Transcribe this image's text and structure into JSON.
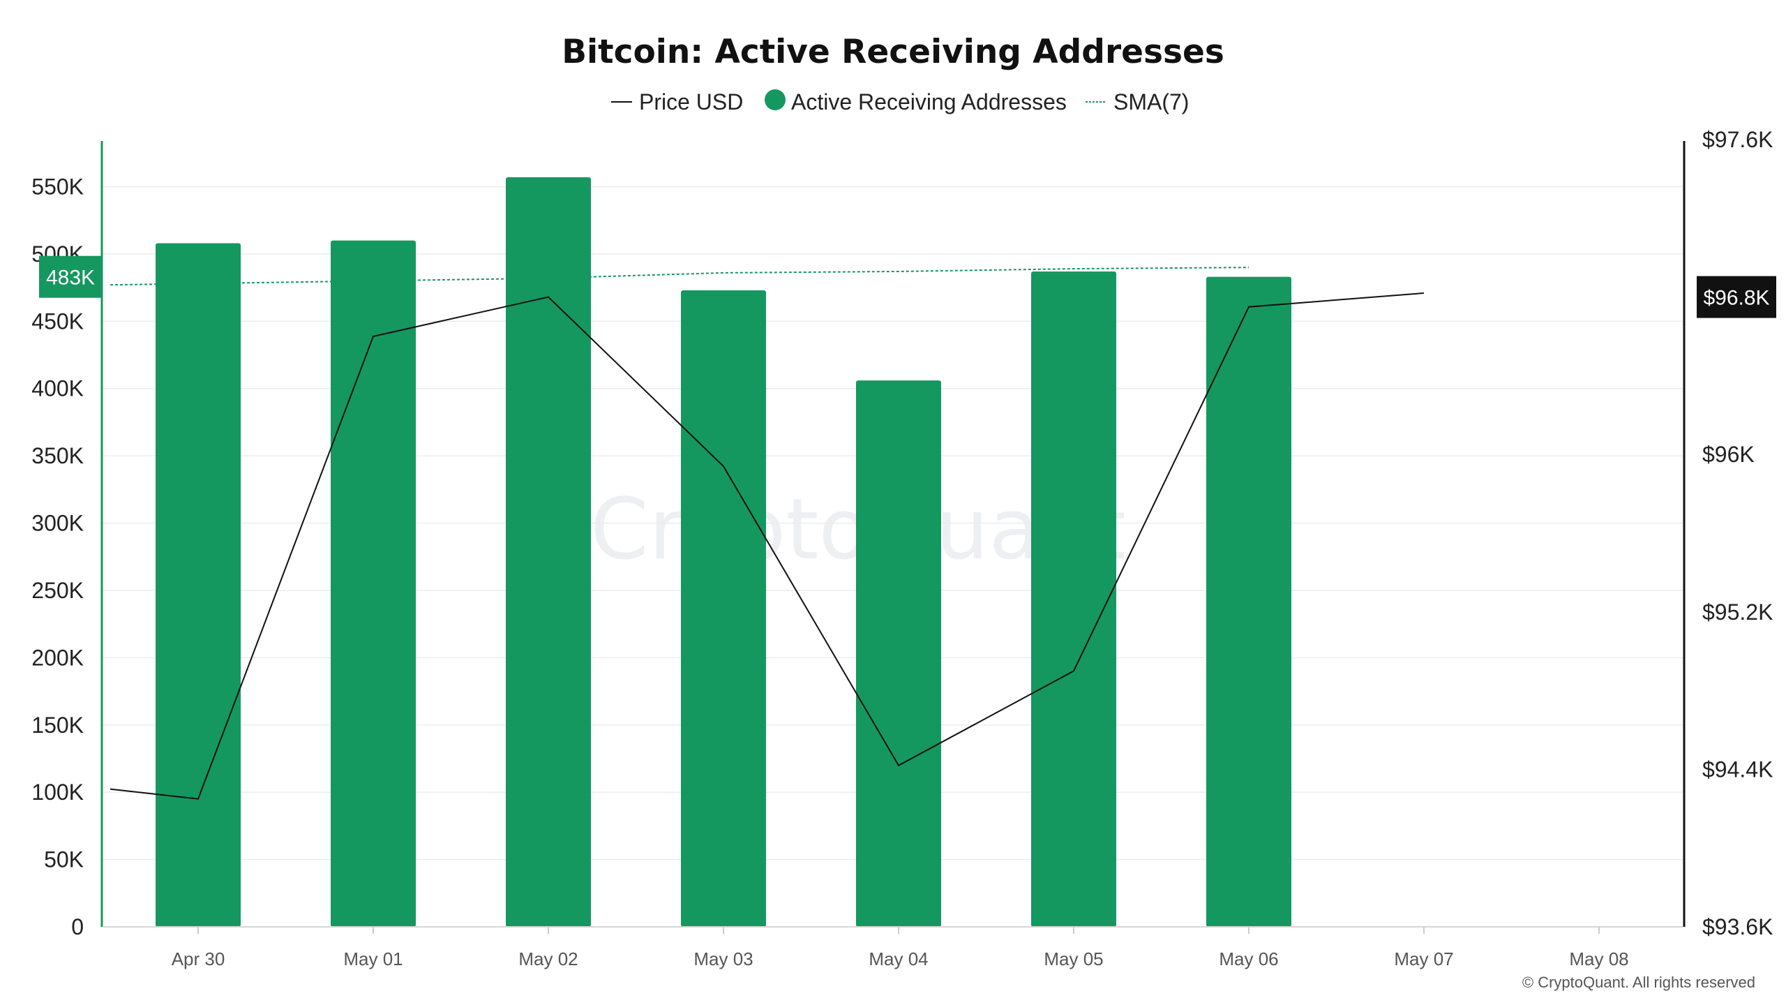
{
  "chart_data": {
    "type": "bar",
    "title": "Bitcoin: Active Receiving Addresses",
    "categories": [
      "Apr 30",
      "May 01",
      "May 02",
      "May 03",
      "May 04",
      "May 05",
      "May 06",
      "May 07",
      "May 08"
    ],
    "series": [
      {
        "name": "Active Receiving Addresses",
        "type": "bar",
        "axis": "left",
        "color": "#14985f",
        "values": [
          508000,
          510000,
          557000,
          473000,
          406000,
          487000,
          483000,
          null,
          null
        ]
      },
      {
        "name": "Price USD",
        "type": "line",
        "axis": "right",
        "color": "#111111",
        "values": [
          94250,
          96600,
          96800,
          95940,
          94420,
          94900,
          96750,
          96820,
          null
        ],
        "start_value": 94300
      },
      {
        "name": "SMA(7)",
        "type": "line",
        "style": "dashed",
        "axis": "left",
        "color": "#14985f",
        "values": [
          478000,
          480000,
          482000,
          486000,
          487000,
          489000,
          490000,
          null,
          null
        ],
        "start_value": 477000
      }
    ],
    "y_left": {
      "ylim": [
        0,
        585000
      ],
      "ticks": [
        0,
        50000,
        100000,
        150000,
        200000,
        250000,
        300000,
        350000,
        400000,
        450000,
        500000,
        550000
      ],
      "tick_labels": [
        "0",
        "50K",
        "100K",
        "150K",
        "200K",
        "250K",
        "300K",
        "350K",
        "400K",
        "450K",
        "500K",
        "550K"
      ]
    },
    "y_right": {
      "ylim": [
        93600,
        97600
      ],
      "ticks": [
        93600,
        94400,
        95200,
        96000,
        96800,
        97600
      ],
      "tick_labels": [
        "$93.6K",
        "$94.4K",
        "$95.2K",
        "$96K",
        "$96.8K",
        "$97.6K"
      ]
    },
    "left_badge": {
      "value": 483000,
      "label": "483K"
    },
    "right_badge": {
      "value": 96800,
      "label": "$96.8K"
    },
    "legend_placement": "top-center",
    "grid": "horizontal",
    "watermark": "CryptoQuant",
    "copyright": "© CryptoQuant. All rights reserved"
  }
}
